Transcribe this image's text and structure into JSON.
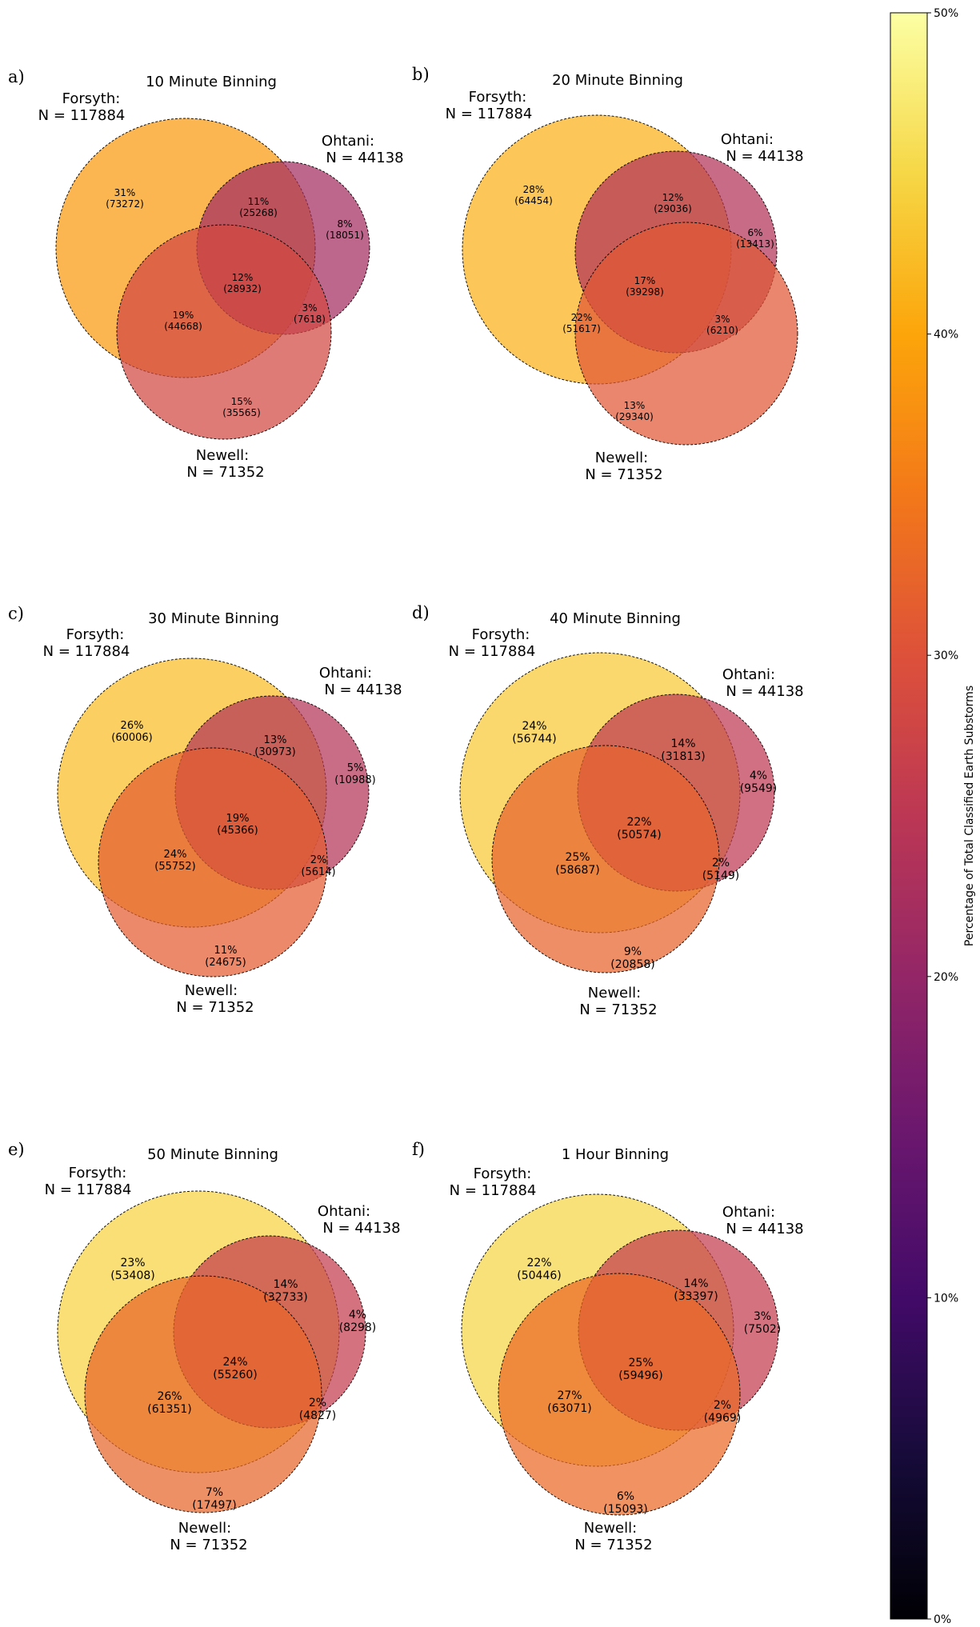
{
  "chart_data": {
    "type": "venn",
    "set_labels": {
      "forsyth": [
        "Forsyth:",
        "N = 117884"
      ],
      "ohtani": [
        "Ohtani:",
        "N = 44138"
      ],
      "newell": [
        "Newell:",
        "N = 71352"
      ]
    },
    "colorbar": {
      "label": "Percentage of Total Classified Earth Substorms",
      "colormap": "inferno",
      "range": [
        0,
        50
      ],
      "ticks": [
        "0%",
        "10%",
        "20%",
        "30%",
        "40%",
        "50%"
      ]
    },
    "panels": [
      {
        "letter": "a)",
        "title": "10 Minute Binning",
        "regions": {
          "forsyth_only": [
            "31%",
            "(73272)"
          ],
          "ohtani_only": [
            "8%",
            "(18051)"
          ],
          "newell_only": [
            "15%",
            "(35565)"
          ],
          "forsyth_ohtani": [
            "11%",
            "(25268)"
          ],
          "forsyth_newell": [
            "19%",
            "(44668)"
          ],
          "ohtani_newell": [
            "3%",
            "(7618)"
          ],
          "all_three": [
            "12%",
            "(28932)"
          ]
        }
      },
      {
        "letter": "b)",
        "title": "20 Minute Binning",
        "regions": {
          "forsyth_only": [
            "28%",
            "(64454)"
          ],
          "ohtani_only": [
            "6%",
            "(13413)"
          ],
          "newell_only": [
            "13%",
            "(29340)"
          ],
          "forsyth_ohtani": [
            "12%",
            "(29036)"
          ],
          "forsyth_newell": [
            "22%",
            "(51617)"
          ],
          "ohtani_newell": [
            "3%",
            "(6210)"
          ],
          "all_three": [
            "17%",
            "(39298)"
          ]
        }
      },
      {
        "letter": "c)",
        "title": "30 Minute Binning",
        "regions": {
          "forsyth_only": [
            "26%",
            "(60006)"
          ],
          "ohtani_only": [
            "5%",
            "(10988)"
          ],
          "newell_only": [
            "11%",
            "(24675)"
          ],
          "forsyth_ohtani": [
            "13%",
            "(30973)"
          ],
          "forsyth_newell": [
            "24%",
            "(55752)"
          ],
          "ohtani_newell": [
            "2%",
            "(5614)"
          ],
          "all_three": [
            "19%",
            "(45366)"
          ]
        }
      },
      {
        "letter": "d)",
        "title": "40 Minute Binning",
        "regions": {
          "forsyth_only": [
            "24%",
            "(56744)"
          ],
          "ohtani_only": [
            "4%",
            "(9549)"
          ],
          "newell_only": [
            "9%",
            "(20858)"
          ],
          "forsyth_ohtani": [
            "14%",
            "(31813)"
          ],
          "forsyth_newell": [
            "25%",
            "(58687)"
          ],
          "ohtani_newell": [
            "2%",
            "(5149)"
          ],
          "all_three": [
            "22%",
            "(50574)"
          ]
        }
      },
      {
        "letter": "e)",
        "title": "50 Minute Binning",
        "regions": {
          "forsyth_only": [
            "23%",
            "(53408)"
          ],
          "ohtani_only": [
            "4%",
            "(8298)"
          ],
          "newell_only": [
            "7%",
            "(17497)"
          ],
          "forsyth_ohtani": [
            "14%",
            "(32733)"
          ],
          "forsyth_newell": [
            "26%",
            "(61351)"
          ],
          "ohtani_newell": [
            "2%",
            "(4827)"
          ],
          "all_three": [
            "24%",
            "(55260)"
          ]
        }
      },
      {
        "letter": "f)",
        "title": "1 Hour Binning",
        "regions": {
          "forsyth_only": [
            "22%",
            "(50446)"
          ],
          "ohtani_only": [
            "3%",
            "(7502)"
          ],
          "newell_only": [
            "6%",
            "(15093)"
          ],
          "forsyth_ohtani": [
            "14%",
            "(33397)"
          ],
          "forsyth_newell": [
            "27%",
            "(63071)"
          ],
          "ohtani_newell": [
            "2%",
            "(4969)"
          ],
          "all_three": [
            "25%",
            "(59496)"
          ]
        }
      }
    ]
  }
}
